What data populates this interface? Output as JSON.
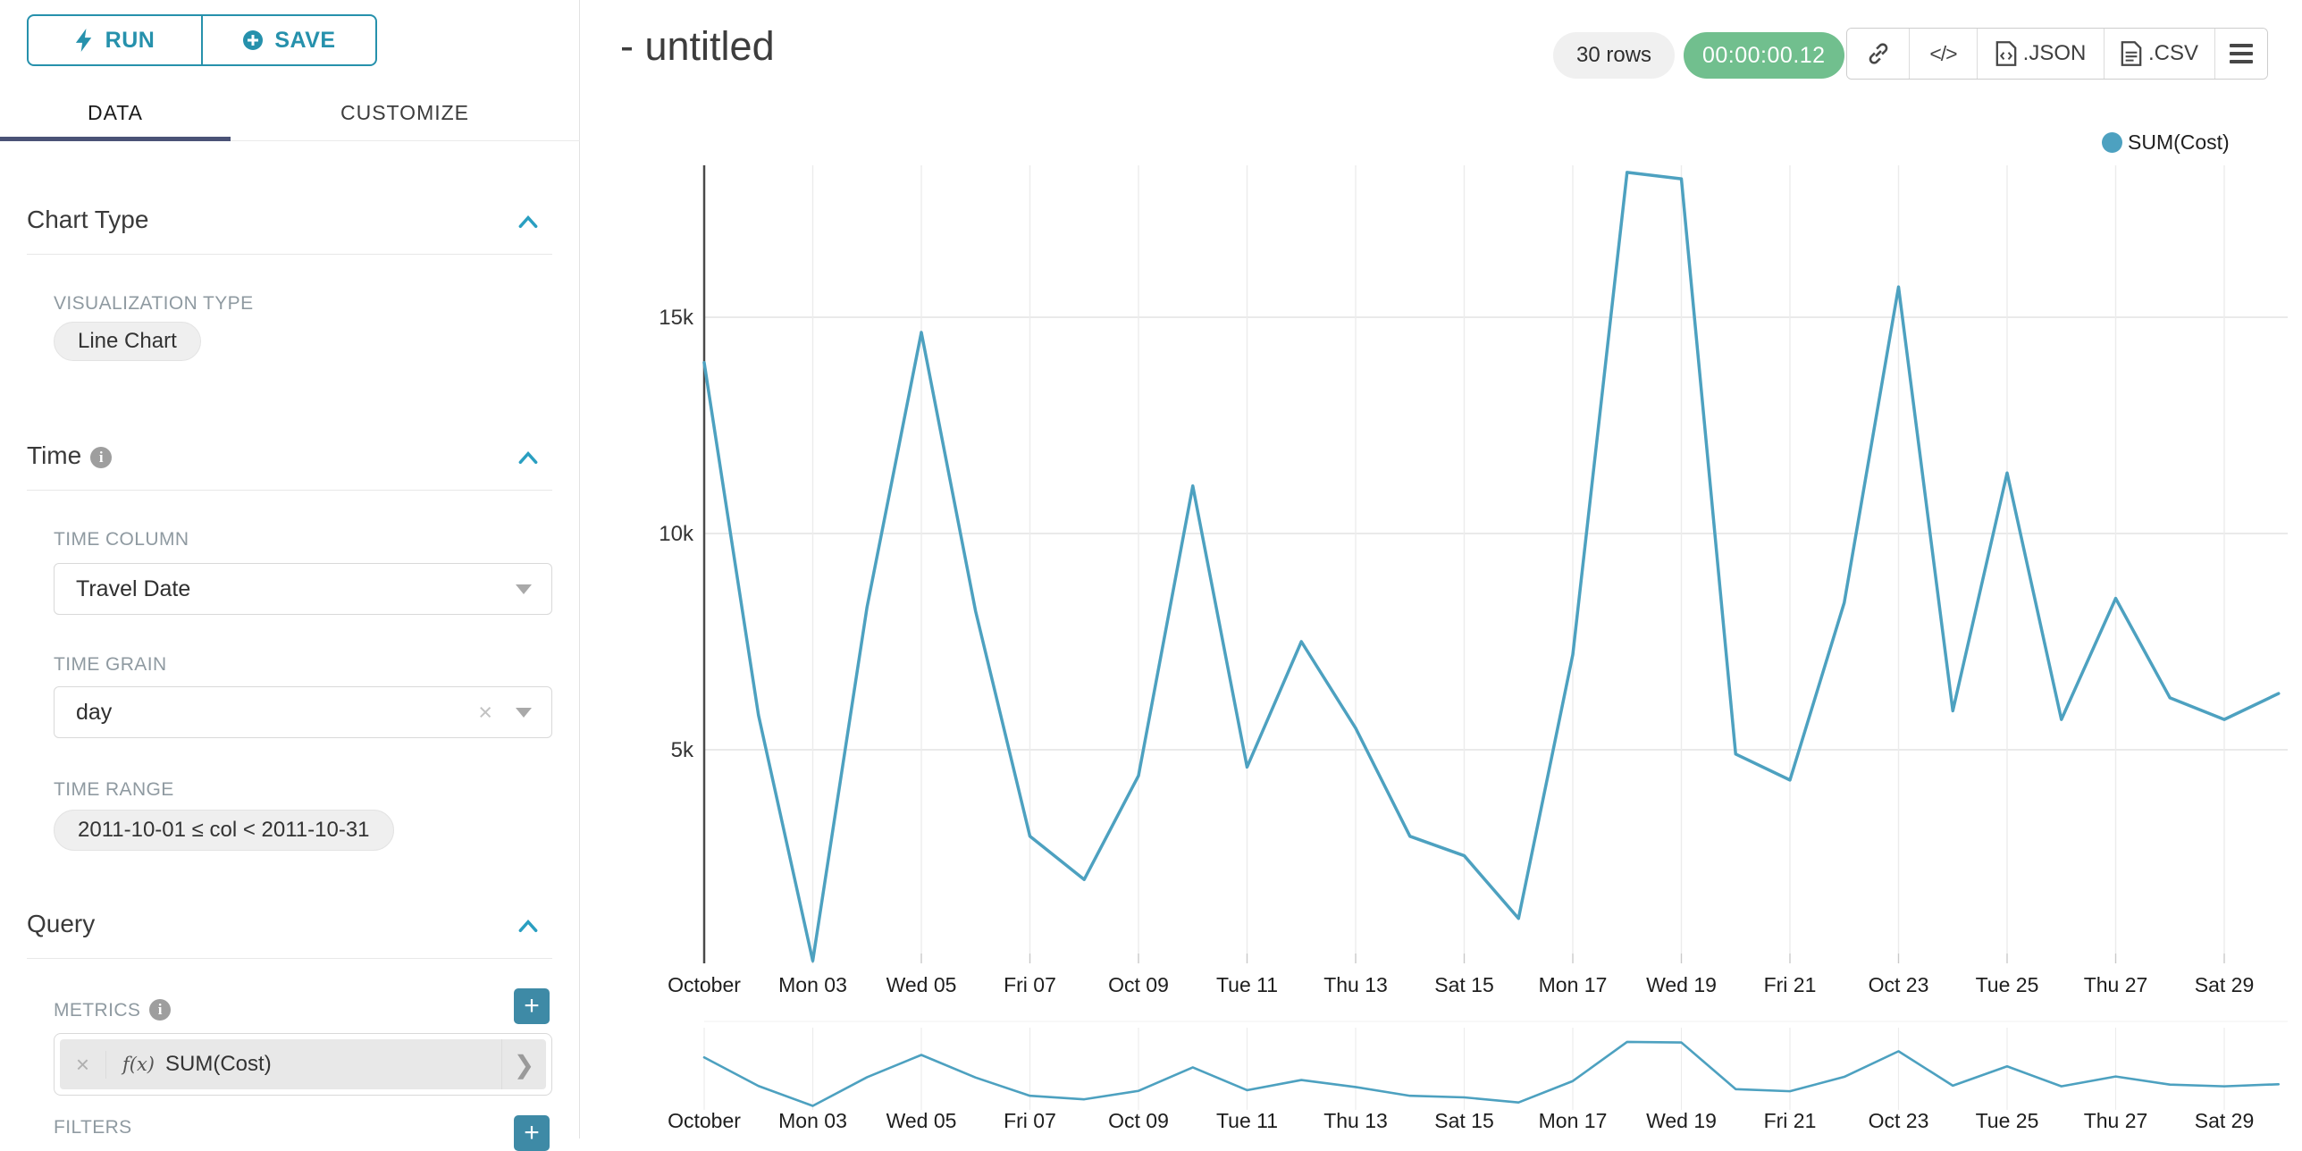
{
  "theme": {
    "accent_teal": "#2691ac",
    "button_teal": "#3e8aa6",
    "tab_underline": "#4a5276",
    "success_green": "#71bf8e",
    "line_color": "#4da1c0",
    "grid_color": "#e4e4e4",
    "axis_color": "#4a4a4a"
  },
  "sidebar": {
    "run_label": "RUN",
    "save_label": "SAVE",
    "tabs": [
      {
        "label": "DATA",
        "active": true
      },
      {
        "label": "CUSTOMIZE",
        "active": false
      }
    ],
    "chart_type": {
      "title": "Chart Type",
      "viz_type_label": "VISUALIZATION TYPE",
      "viz_type_value": "Line Chart"
    },
    "time": {
      "title": "Time",
      "time_column_label": "TIME COLUMN",
      "time_column_value": "Travel Date",
      "time_grain_label": "TIME GRAIN",
      "time_grain_value": "day",
      "time_grain_clear": "×",
      "time_range_label": "TIME RANGE",
      "time_range_value": "2011-10-01 ≤ col < 2011-10-31"
    },
    "query": {
      "title": "Query",
      "metrics_label": "METRICS",
      "add_label": "+",
      "metric_remove": "×",
      "metric_fx": "f(x)",
      "metric_value": "SUM(Cost)",
      "metric_arrow": "❯",
      "filters_label": "FILTERS"
    }
  },
  "header": {
    "title": "- untitled",
    "rows_badge": "30 rows",
    "timer_badge": "00:00:00.12",
    "code_glyph": "</>",
    "export_json_label": ".JSON",
    "export_csv_label": ".CSV"
  },
  "legend": {
    "label": "SUM(Cost)",
    "color": "#4da1c0"
  },
  "chart_data": {
    "type": "line",
    "title": "",
    "xlabel": "",
    "ylabel": "",
    "legend_position": "top-right",
    "grid": true,
    "has_preview_minichart": true,
    "ylim": [
      0,
      18600
    ],
    "y_ticks": [
      {
        "label": "5k",
        "value": 5000
      },
      {
        "label": "10k",
        "value": 10000
      },
      {
        "label": "15k",
        "value": 15000
      }
    ],
    "x_tick_labels": [
      "October",
      "Mon 03",
      "Wed 05",
      "Fri 07",
      "Oct 09",
      "Tue 11",
      "Thu 13",
      "Sat 15",
      "Mon 17",
      "Wed 19",
      "Fri 21",
      "Oct 23",
      "Tue 25",
      "Thu 27",
      "Sat 29"
    ],
    "x": [
      "2011-10-01",
      "2011-10-02",
      "2011-10-03",
      "2011-10-04",
      "2011-10-05",
      "2011-10-06",
      "2011-10-07",
      "2011-10-08",
      "2011-10-09",
      "2011-10-10",
      "2011-10-11",
      "2011-10-12",
      "2011-10-13",
      "2011-10-14",
      "2011-10-15",
      "2011-10-16",
      "2011-10-17",
      "2011-10-18",
      "2011-10-19",
      "2011-10-20",
      "2011-10-21",
      "2011-10-22",
      "2011-10-23",
      "2011-10-24",
      "2011-10-25",
      "2011-10-26",
      "2011-10-27",
      "2011-10-28",
      "2011-10-29",
      "2011-10-30"
    ],
    "series": [
      {
        "name": "SUM(Cost)",
        "values": [
          13950,
          5800,
          120,
          8300,
          14650,
          8200,
          3000,
          2000,
          4400,
          11100,
          4600,
          7500,
          5500,
          3000,
          2550,
          1100,
          7200,
          18350,
          18200,
          4900,
          4300,
          8400,
          15700,
          5900,
          11400,
          5700,
          8500,
          6200,
          5700,
          6300
        ]
      }
    ]
  }
}
